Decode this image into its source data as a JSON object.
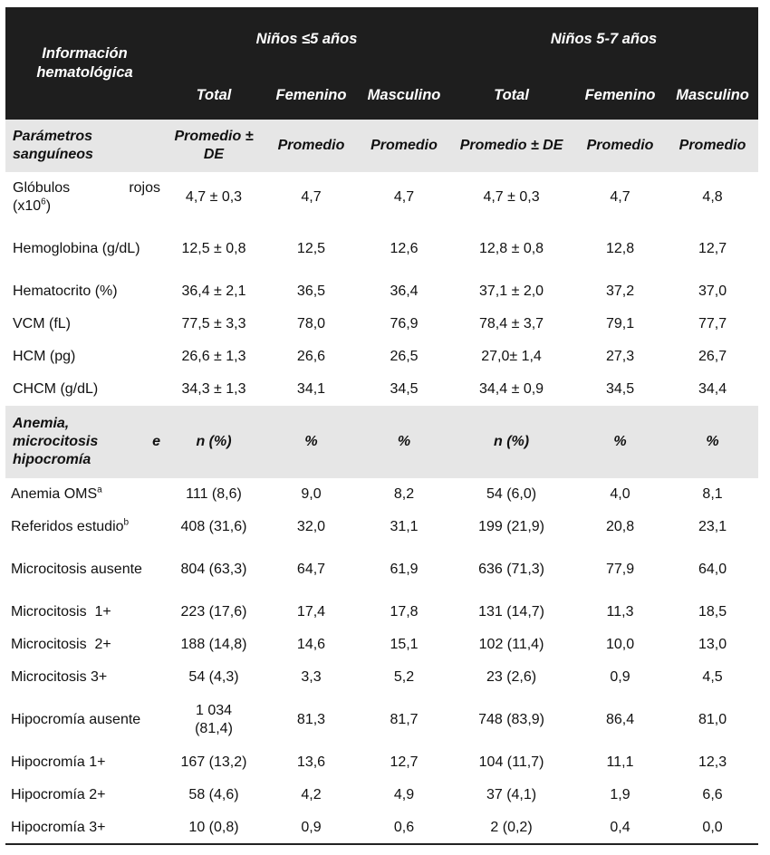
{
  "header": {
    "info_label": "Información hematológica",
    "group1": "Niños ≤5 años",
    "group2": "Niños 5-7  años",
    "col_total": "Total",
    "col_fem": "Femenino",
    "col_masc": "Masculino"
  },
  "section1": {
    "label": "Parámetros sanguíneos",
    "h_total": "Promedio ± DE",
    "h_fem": "Promedio",
    "h_masc": "Promedio",
    "h_total2": "Promedio ± DE",
    "h_fem2": "Promedio",
    "h_masc2": "Promedio"
  },
  "rows1": [
    {
      "label_a": "Glóbulos",
      "label_b": "rojos",
      "label_c": "(x10",
      "sup": "6",
      "label_d": ")",
      "t1": "4,7 ± 0,3",
      "f1": "4,7",
      "m1": "4,7",
      "t2": "4,7 ± 0,3",
      "f2": "4,7",
      "m2": "4,8"
    },
    {
      "label": "Hemoglobina (g/dL)",
      "t1": "12,5 ± 0,8",
      "f1": "12,5",
      "m1": "12,6",
      "t2": "12,8 ± 0,8",
      "f2": "12,8",
      "m2": "12,7"
    },
    {
      "label": "Hematocrito (%)",
      "t1": "36,4 ± 2,1",
      "f1": "36,5",
      "m1": "36,4",
      "t2": "37,1 ± 2,0",
      "f2": "37,2",
      "m2": "37,0"
    },
    {
      "label": "VCM (fL)",
      "t1": "77,5 ± 3,3",
      "f1": "78,0",
      "m1": "76,9",
      "t2": "78,4 ± 3,7",
      "f2": "79,1",
      "m2": "77,7"
    },
    {
      "label": "HCM (pg)",
      "t1": "26,6 ± 1,3",
      "f1": "26,6",
      "m1": "26,5",
      "t2": "27,0± 1,4",
      "f2": "27,3",
      "m2": "26,7"
    },
    {
      "label": "CHCM (g/dL)",
      "t1": "34,3 ± 1,3",
      "f1": "34,1",
      "m1": "34,5",
      "t2": "34,4 ± 0,9",
      "f2": "34,5",
      "m2": "34,4"
    }
  ],
  "section2": {
    "label_line1": "Anemia,",
    "label_line2a": "microcitosis",
    "label_line2b": "e",
    "label_line3": "hipocromía",
    "h_total": "n (%)",
    "h_fem": "%",
    "h_masc": "%",
    "h_total2": "n (%)",
    "h_fem2": "%",
    "h_masc2": "%"
  },
  "rows2": [
    {
      "label": "Anemia OMS",
      "sup": "a",
      "t1": "111 (8,6)",
      "f1": "9,0",
      "m1": "8,2",
      "t2": "54 (6,0)",
      "f2": "4,0",
      "m2": "8,1"
    },
    {
      "label": "Referidos estudio",
      "sup": "b",
      "t1": "408 (31,6)",
      "f1": "32,0",
      "m1": "31,1",
      "t2": "199 (21,9)",
      "f2": "20,8",
      "m2": "23,1"
    },
    {
      "label": "Microcitosis ausente",
      "t1": "804 (63,3)",
      "f1": "64,7",
      "m1": "61,9",
      "t2": "636 (71,3)",
      "f2": "77,9",
      "m2": "64,0"
    },
    {
      "label": "Microcitosis  1+",
      "t1": "223 (17,6)",
      "f1": "17,4",
      "m1": "17,8",
      "t2": "131 (14,7)",
      "f2": "11,3",
      "m2": "18,5"
    },
    {
      "label": "Microcitosis  2+",
      "t1": "188 (14,8)",
      "f1": "14,6",
      "m1": "15,1",
      "t2": "102 (11,4)",
      "f2": "10,0",
      "m2": "13,0"
    },
    {
      "label": "Microcitosis 3+",
      "t1": "54 (4,3)",
      "f1": "3,3",
      "m1": "5,2",
      "t2": "23 (2,6)",
      "f2": "0,9",
      "m2": "4,5"
    },
    {
      "label": "Hipocromía ausente",
      "t1": "1 034 (81,4)",
      "f1": "81,3",
      "m1": "81,7",
      "t2": "748 (83,9)",
      "f2": "86,4",
      "m2": "81,0"
    },
    {
      "label": "Hipocromía 1+",
      "t1": "167 (13,2)",
      "f1": "13,6",
      "m1": "12,7",
      "t2": "104 (11,7)",
      "f2": "11,1",
      "m2": "12,3"
    },
    {
      "label": "Hipocromía 2+",
      "t1": "58 (4,6)",
      "f1": "4,2",
      "m1": "4,9",
      "t2": "37 (4,1)",
      "f2": "1,9",
      "m2": "6,6"
    },
    {
      "label": "Hipocromía 3+",
      "t1": "10 (0,8)",
      "f1": "0,9",
      "m1": "0,6",
      "t2": "2 (0,2)",
      "f2": "0,4",
      "m2": "0,0"
    }
  ]
}
